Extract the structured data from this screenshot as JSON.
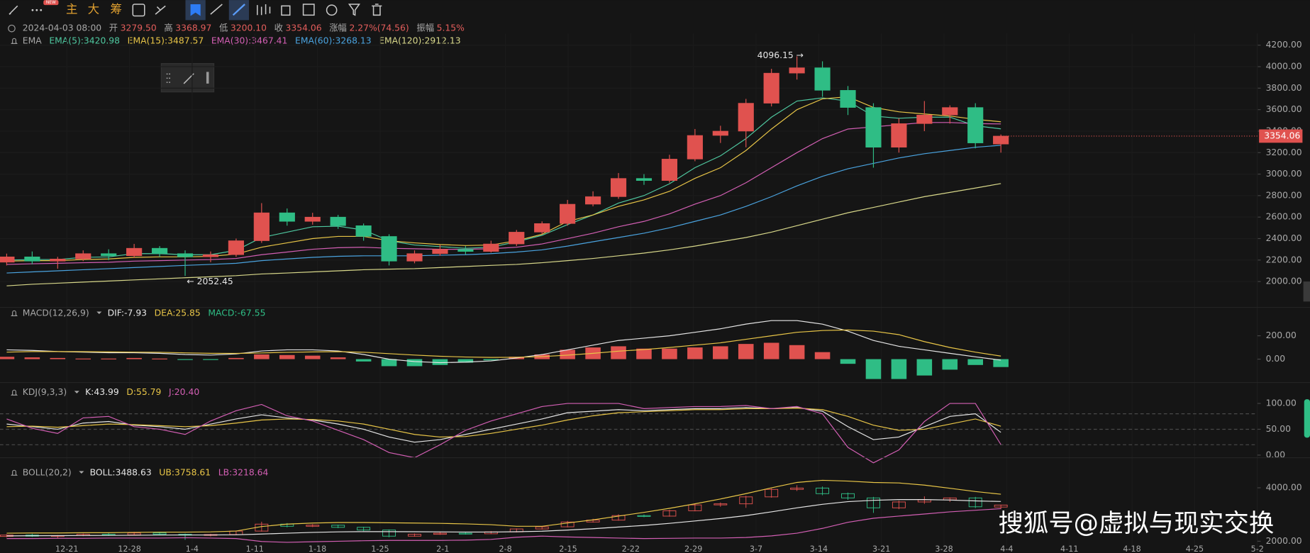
{
  "toolbar": {
    "labels": [
      "主",
      "大",
      "筹"
    ],
    "badge": "NEW"
  },
  "header": {
    "datetime": "2024-04-03 08:00",
    "fields": [
      [
        "开",
        "3279.50"
      ],
      [
        "高",
        "3368.97"
      ],
      [
        "低",
        "3200.10"
      ],
      [
        "收",
        "3354.06"
      ],
      [
        "涨幅",
        "2.27%(74.56)"
      ],
      [
        "振幅",
        "5.15%"
      ]
    ]
  },
  "watermark": "搜狐号@虚拟与现实交换",
  "chart_data": [
    {
      "type": "candlestick",
      "title": "EMA",
      "up_color": "#e0524f",
      "down_color": "#2fbd85",
      "grid": true,
      "open": [
        2180,
        2230,
        2190,
        2210,
        2260,
        2240,
        2310,
        2260,
        2230,
        2250,
        2380,
        2640,
        2560,
        2600,
        2520,
        2420,
        2190,
        2260,
        2300,
        2280,
        2350,
        2460,
        2540,
        2720,
        2790,
        2960,
        2940,
        3140,
        3360,
        3400,
        3660,
        3940,
        3990,
        3780,
        3620,
        3250,
        3470,
        3550,
        3620,
        3279.5
      ],
      "high": [
        2260,
        2280,
        2230,
        2290,
        2300,
        2350,
        2330,
        2290,
        2280,
        2400,
        2730,
        2680,
        2640,
        2620,
        2540,
        2440,
        2290,
        2340,
        2330,
        2380,
        2480,
        2560,
        2760,
        2840,
        3010,
        3000,
        3180,
        3420,
        3450,
        3700,
        3980,
        4096.15,
        4050,
        3820,
        3660,
        3520,
        3680,
        3640,
        3660,
        3368.97
      ],
      "low": [
        2150,
        2160,
        2120,
        2190,
        2200,
        2220,
        2230,
        2052.45,
        2180,
        2230,
        2360,
        2520,
        2530,
        2490,
        2380,
        2150,
        2170,
        2240,
        2250,
        2270,
        2330,
        2440,
        2520,
        2700,
        2770,
        2900,
        2920,
        3120,
        3290,
        3250,
        3630,
        3880,
        3720,
        3550,
        3060,
        3200,
        3400,
        3470,
        3240,
        3200.1
      ],
      "close": [
        2230,
        2190,
        2210,
        2260,
        2240,
        2310,
        2260,
        2230,
        2250,
        2380,
        2640,
        2560,
        2600,
        2520,
        2420,
        2190,
        2260,
        2300,
        2280,
        2350,
        2460,
        2540,
        2720,
        2790,
        2960,
        2940,
        3140,
        3360,
        3400,
        3660,
        3940,
        3990,
        3780,
        3620,
        3250,
        3470,
        3550,
        3620,
        3290,
        3354.06
      ],
      "series": [
        {
          "name": "EMA(5):3420.98",
          "color": "#4fc8a0",
          "values": [
            2200,
            2205,
            2205,
            2225,
            2230,
            2260,
            2260,
            2250,
            2250,
            2290,
            2410,
            2460,
            2510,
            2515,
            2480,
            2380,
            2340,
            2325,
            2310,
            2320,
            2370,
            2430,
            2530,
            2620,
            2730,
            2800,
            2910,
            3060,
            3170,
            3330,
            3530,
            3680,
            3710,
            3680,
            3540,
            3520,
            3530,
            3530,
            3450,
            3420.98
          ]
        },
        {
          "name": "EMA(15):3487.57",
          "color": "#e8c547",
          "values": [
            2190,
            2195,
            2195,
            2205,
            2210,
            2225,
            2230,
            2230,
            2235,
            2255,
            2320,
            2360,
            2400,
            2420,
            2420,
            2380,
            2360,
            2345,
            2335,
            2340,
            2380,
            2440,
            2560,
            2620,
            2700,
            2760,
            2840,
            2960,
            3060,
            3220,
            3420,
            3600,
            3700,
            3720,
            3620,
            3580,
            3560,
            3540,
            3510,
            3487.57
          ]
        },
        {
          "name": "EMA(30):3467.41",
          "color": "#d35fb4",
          "values": [
            2160,
            2165,
            2170,
            2175,
            2180,
            2190,
            2195,
            2200,
            2205,
            2215,
            2250,
            2275,
            2300,
            2315,
            2320,
            2310,
            2305,
            2300,
            2300,
            2305,
            2320,
            2350,
            2400,
            2450,
            2510,
            2560,
            2630,
            2720,
            2800,
            2920,
            3060,
            3200,
            3330,
            3420,
            3440,
            3460,
            3480,
            3480,
            3470,
            3467.41
          ]
        },
        {
          "name": "EMA(60):3268.13",
          "color": "#4aa3df",
          "values": [
            2080,
            2090,
            2100,
            2110,
            2120,
            2130,
            2140,
            2150,
            2160,
            2170,
            2195,
            2210,
            2225,
            2235,
            2240,
            2240,
            2240,
            2245,
            2250,
            2260,
            2275,
            2295,
            2330,
            2370,
            2410,
            2450,
            2500,
            2560,
            2620,
            2700,
            2790,
            2890,
            2980,
            3050,
            3100,
            3150,
            3190,
            3220,
            3250,
            3268.13
          ]
        },
        {
          "name": "EMA(120):2912.13",
          "color": "#d8d88a",
          "values": [
            1960,
            1975,
            1985,
            1995,
            2005,
            2015,
            2025,
            2035,
            2045,
            2055,
            2070,
            2080,
            2090,
            2100,
            2110,
            2115,
            2120,
            2130,
            2140,
            2150,
            2160,
            2175,
            2195,
            2215,
            2240,
            2265,
            2295,
            2330,
            2370,
            2410,
            2460,
            2520,
            2580,
            2640,
            2690,
            2740,
            2790,
            2830,
            2870,
            2912.13
          ]
        }
      ],
      "ylim": [
        1806,
        4309
      ],
      "yticks": [
        {
          "value": 2000,
          "label": "2000.00"
        },
        {
          "value": 2200,
          "label": "2200.00"
        },
        {
          "value": 2400,
          "label": "2400.00"
        },
        {
          "value": 2600,
          "label": "2600.00"
        },
        {
          "value": 2800,
          "label": "2800.00"
        },
        {
          "value": 3000,
          "label": "3000.00"
        },
        {
          "value": 3200,
          "label": "3200.00"
        },
        {
          "value": 3400,
          "label": "3400.00"
        },
        {
          "value": 3600,
          "label": "3600.00"
        },
        {
          "value": 3800,
          "label": "3800.00"
        },
        {
          "value": 4000,
          "label": "4000.00"
        },
        {
          "value": 4200,
          "label": "4200.00"
        }
      ],
      "max_label": "4096.15 →",
      "min_label": "← 2052.45",
      "last_price_label": "3354.06",
      "xtick_labels": [
        "12-21",
        "12-28",
        "1-4",
        "1-11",
        "1-18",
        "1-25",
        "2-1",
        "2-8",
        "2-15",
        "2-22",
        "2-29",
        "3-7",
        "3-14",
        "3-21",
        "3-28",
        "4-4",
        "4-11",
        "4-18",
        "4-25",
        "5-2"
      ]
    },
    {
      "type": "macd",
      "title": "MACD(12,26,9)",
      "series": [
        {
          "name": "DIF:-7.93",
          "color": "#e6e6e6",
          "values": [
            80,
            75,
            65,
            60,
            55,
            55,
            50,
            40,
            35,
            45,
            70,
            80,
            80,
            70,
            40,
            0,
            -20,
            -30,
            -25,
            -15,
            10,
            40,
            80,
            120,
            160,
            180,
            200,
            230,
            260,
            300,
            330,
            330,
            300,
            240,
            160,
            110,
            80,
            50,
            20,
            -7.93
          ]
        },
        {
          "name": "DEA:25.85",
          "color": "#e8c547",
          "values": [
            60,
            65,
            65,
            64,
            62,
            60,
            58,
            54,
            50,
            49,
            53,
            58,
            62,
            64,
            59,
            47,
            35,
            25,
            18,
            15,
            16,
            22,
            34,
            50,
            68,
            82,
            100,
            120,
            140,
            170,
            200,
            230,
            245,
            250,
            240,
            210,
            150,
            100,
            60,
            25.85
          ]
        }
      ],
      "histogram": {
        "name": "MACD:-67.55",
        "up_color": "#e0524f",
        "down_color": "#2fbd85",
        "values": [
          20,
          15,
          10,
          5,
          5,
          10,
          5,
          -5,
          -5,
          10,
          40,
          35,
          30,
          15,
          -20,
          -60,
          -60,
          -50,
          -30,
          -10,
          20,
          40,
          80,
          100,
          110,
          90,
          90,
          100,
          110,
          130,
          140,
          120,
          60,
          -40,
          -170,
          -170,
          -140,
          -90,
          -50,
          -67.55
        ]
      },
      "ylim": [
        -229,
        357
      ],
      "yticks": [
        {
          "value": 200,
          "label": "200.00"
        },
        {
          "value": 0,
          "label": "0.00"
        }
      ]
    },
    {
      "type": "line",
      "title": "KDJ(9,3,3)",
      "series": [
        {
          "name": "K:43.99",
          "color": "#e6e6e6",
          "values": [
            60,
            55,
            50,
            62,
            65,
            58,
            55,
            50,
            60,
            70,
            78,
            72,
            68,
            60,
            50,
            35,
            25,
            30,
            40,
            50,
            60,
            70,
            82,
            85,
            88,
            86,
            88,
            90,
            90,
            92,
            90,
            92,
            85,
            55,
            30,
            35,
            55,
            75,
            80,
            43.99
          ]
        },
        {
          "name": "D:55.79",
          "color": "#e8c547",
          "values": [
            55,
            56,
            54,
            57,
            60,
            59,
            57,
            55,
            57,
            62,
            68,
            70,
            69,
            66,
            60,
            50,
            40,
            35,
            36,
            42,
            50,
            58,
            68,
            76,
            82,
            84,
            86,
            88,
            88,
            90,
            90,
            91,
            88,
            75,
            58,
            48,
            50,
            60,
            70,
            55.79
          ]
        },
        {
          "name": "J:20.40",
          "color": "#d35fb4",
          "values": [
            70,
            52,
            42,
            72,
            75,
            55,
            50,
            40,
            66,
            86,
            98,
            76,
            66,
            48,
            30,
            5,
            -5,
            20,
            48,
            66,
            80,
            94,
            100,
            100,
            100,
            90,
            92,
            94,
            94,
            96,
            90,
            94,
            80,
            15,
            -15,
            10,
            65,
            100,
            100,
            20.4
          ]
        }
      ],
      "guide_levels": [
        80,
        50,
        20
      ],
      "ylim": [
        -18,
        121
      ],
      "yticks": [
        {
          "value": 100,
          "label": "100.00"
        },
        {
          "value": 50,
          "label": "50.00"
        },
        {
          "value": 0,
          "label": "0.00"
        }
      ]
    },
    {
      "type": "boll",
      "title": "BOLL(20,2)",
      "series": [
        {
          "name": "BOLL:3488.63",
          "color": "#e6e6e6",
          "values": [
            2200,
            2205,
            2210,
            2215,
            2220,
            2225,
            2230,
            2235,
            2235,
            2240,
            2270,
            2300,
            2330,
            2350,
            2360,
            2360,
            2355,
            2350,
            2345,
            2345,
            2355,
            2375,
            2420,
            2470,
            2530,
            2590,
            2670,
            2760,
            2850,
            2960,
            3100,
            3250,
            3380,
            3480,
            3530,
            3560,
            3560,
            3540,
            3510,
            3488.63
          ]
        },
        {
          "name": "UB:3758.61",
          "color": "#e8c547",
          "values": [
            2300,
            2310,
            2310,
            2320,
            2320,
            2330,
            2340,
            2340,
            2350,
            2380,
            2550,
            2640,
            2680,
            2700,
            2700,
            2690,
            2680,
            2670,
            2650,
            2620,
            2560,
            2560,
            2680,
            2800,
            2940,
            3080,
            3230,
            3400,
            3580,
            3780,
            4000,
            4200,
            4280,
            4250,
            4200,
            4180,
            4100,
            3980,
            3860,
            3758.61
          ]
        },
        {
          "name": "LB:3218.64",
          "color": "#d35fb4",
          "values": [
            2100,
            2100,
            2110,
            2110,
            2120,
            2120,
            2120,
            2130,
            2120,
            2100,
            1990,
            1960,
            1980,
            2000,
            2020,
            2030,
            2030,
            2030,
            2040,
            2070,
            2150,
            2190,
            2160,
            2140,
            2120,
            2100,
            2110,
            2120,
            2120,
            2140,
            2200,
            2300,
            2480,
            2710,
            2860,
            2940,
            3020,
            3100,
            3160,
            3218.64
          ]
        }
      ],
      "ylim": [
        1625,
        4750
      ],
      "yticks": [
        {
          "value": 4000,
          "label": "4000.00"
        },
        {
          "value": 2000,
          "label": "2000.00"
        }
      ]
    }
  ]
}
